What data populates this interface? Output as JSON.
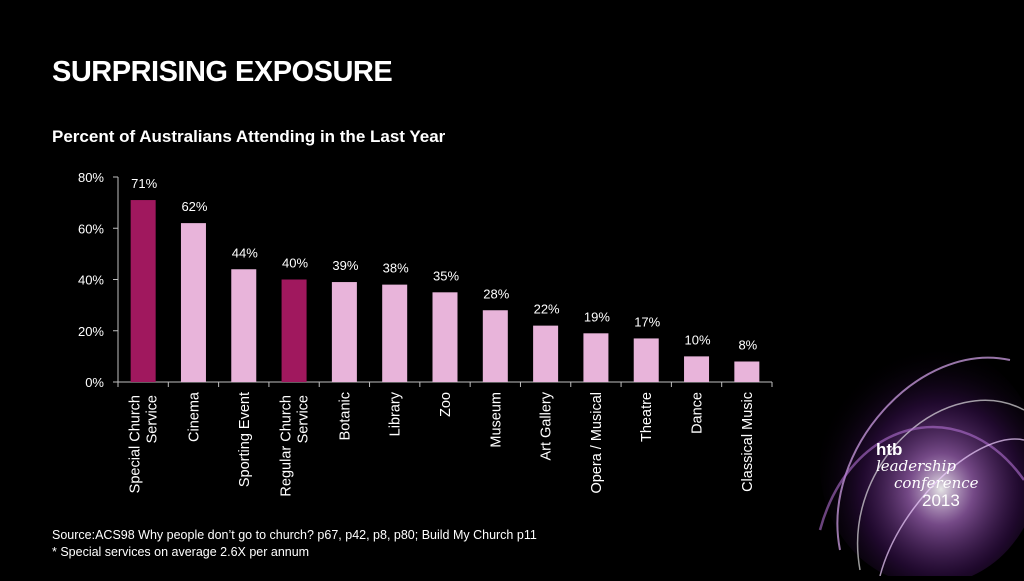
{
  "slide": {
    "title": "SURPRISING EXPOSURE",
    "subtitle": "Percent of Australians Attending in the Last Year"
  },
  "chart_data": {
    "type": "bar",
    "title": "Percent of Australians Attending in the Last Year",
    "xlabel": "",
    "ylabel": "",
    "ylim": [
      0,
      80
    ],
    "yticks": [
      "0%",
      "20%",
      "40%",
      "60%",
      "80%"
    ],
    "grid": false,
    "categories": [
      [
        "Special Church",
        "Service"
      ],
      [
        "Cinema"
      ],
      [
        "Sporting Event"
      ],
      [
        "Regular Church",
        "Service"
      ],
      [
        "Botanic"
      ],
      [
        "Library"
      ],
      [
        "Zoo"
      ],
      [
        "Museum"
      ],
      [
        "Art Gallery"
      ],
      [
        "Opera / Musical"
      ],
      [
        "Theatre"
      ],
      [
        "Dance"
      ],
      [
        "Classical Music"
      ]
    ],
    "values": [
      71,
      62,
      44,
      40,
      39,
      38,
      35,
      28,
      22,
      19,
      17,
      10,
      8
    ],
    "value_labels": [
      "71%",
      "62%",
      "44%",
      "40%",
      "39%",
      "38%",
      "35%",
      "28%",
      "22%",
      "19%",
      "17%",
      "10%",
      "8%"
    ],
    "bar_colors": [
      "#a0185e",
      "#e8b4da",
      "#e8b4da",
      "#a0185e",
      "#e8b4da",
      "#e8b4da",
      "#e8b4da",
      "#e8b4da",
      "#e8b4da",
      "#e8b4da",
      "#e8b4da",
      "#e8b4da",
      "#e8b4da"
    ]
  },
  "source": {
    "line1": "Source:ACS98 Why people don’t go to church? p67, p42, p8, p80; Build My Church p11",
    "line2": "* Special services on average 2.6X per annum"
  },
  "logo": {
    "brand": "htb",
    "line1": "leadership",
    "line2": "conference",
    "year": "2013"
  }
}
